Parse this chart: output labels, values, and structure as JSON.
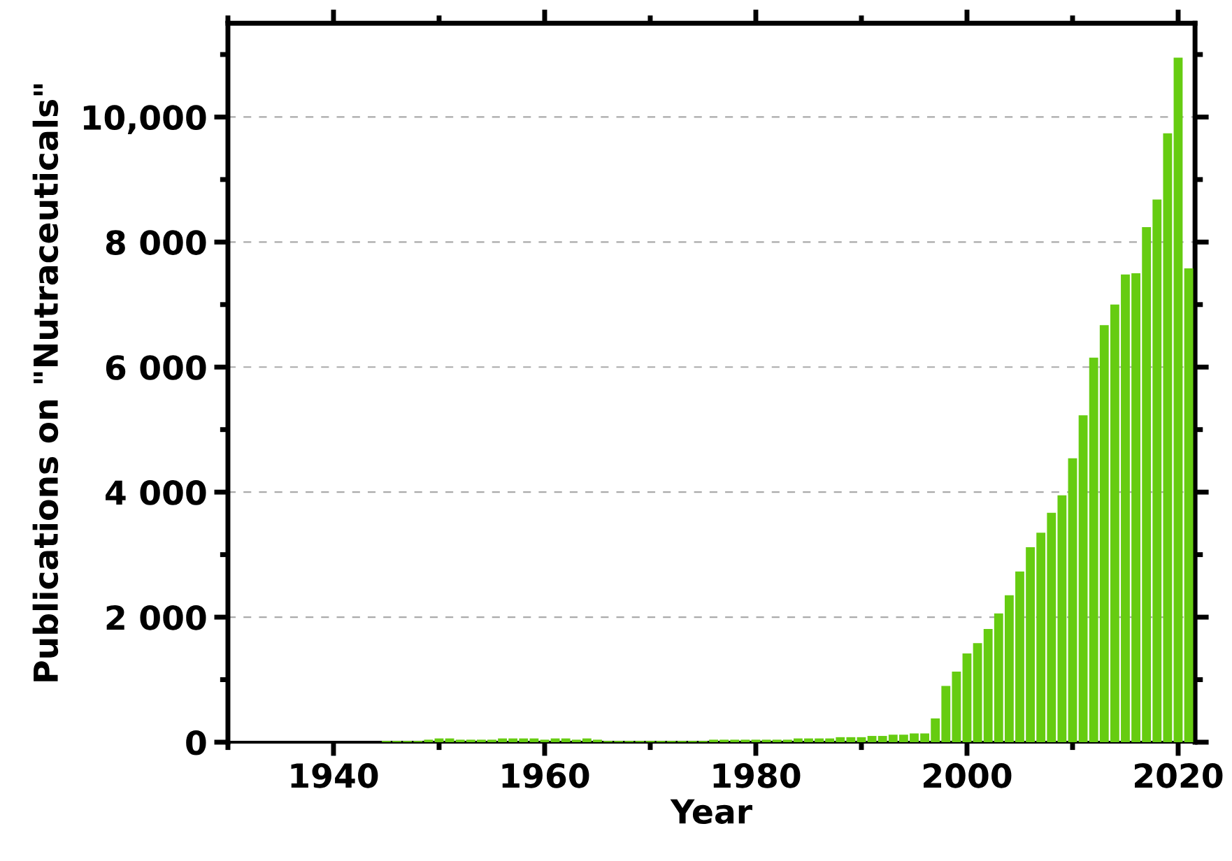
{
  "chart_data": {
    "type": "bar",
    "xlabel": "Year",
    "ylabel": "Publications on \"Nutraceuticals\"",
    "x": [
      1945,
      1946,
      1947,
      1948,
      1949,
      1950,
      1951,
      1952,
      1953,
      1954,
      1955,
      1956,
      1957,
      1958,
      1959,
      1960,
      1961,
      1962,
      1963,
      1964,
      1965,
      1966,
      1967,
      1968,
      1969,
      1970,
      1971,
      1972,
      1973,
      1974,
      1975,
      1976,
      1977,
      1978,
      1979,
      1980,
      1981,
      1982,
      1983,
      1984,
      1985,
      1986,
      1987,
      1988,
      1989,
      1990,
      1991,
      1992,
      1993,
      1994,
      1995,
      1996,
      1997,
      1998,
      1999,
      2000,
      2001,
      2002,
      2003,
      2004,
      2005,
      2006,
      2007,
      2008,
      2009,
      2010,
      2011,
      2012,
      2013,
      2014,
      2015,
      2016,
      2017,
      2018,
      2019,
      2020,
      2021
    ],
    "series": [
      {
        "color": "#66cc11",
        "values": [
          20,
          20,
          20,
          20,
          40,
          60,
          60,
          40,
          40,
          40,
          40,
          60,
          60,
          60,
          60,
          40,
          60,
          60,
          40,
          60,
          40,
          20,
          20,
          20,
          20,
          20,
          20,
          20,
          20,
          20,
          20,
          40,
          40,
          40,
          40,
          40,
          40,
          40,
          40,
          60,
          60,
          60,
          60,
          80,
          80,
          80,
          100,
          100,
          120,
          120,
          140,
          140,
          380,
          900,
          1130,
          1420,
          1585,
          1810,
          2060,
          2350,
          2730,
          3120,
          3350,
          3670,
          3950,
          4540,
          5230,
          6150,
          6670,
          7000,
          7480,
          7500,
          8240,
          8680,
          9740,
          10950,
          7580
        ]
      }
    ],
    "xlim": [
      1930,
      2021.6
    ],
    "xticks": [
      1940,
      1960,
      1980,
      2000,
      2020
    ],
    "ylim": [
      0,
      11500
    ],
    "yticks": [
      0,
      {
        "value": 2000,
        "label": "2 000"
      },
      {
        "value": 4000,
        "label": "4 000"
      },
      {
        "value": 6000,
        "label": "6 000"
      },
      {
        "value": 8000,
        "label": "8 000"
      },
      {
        "value": 10000,
        "label": "10,000"
      }
    ],
    "grid": "y",
    "legend": false
  }
}
